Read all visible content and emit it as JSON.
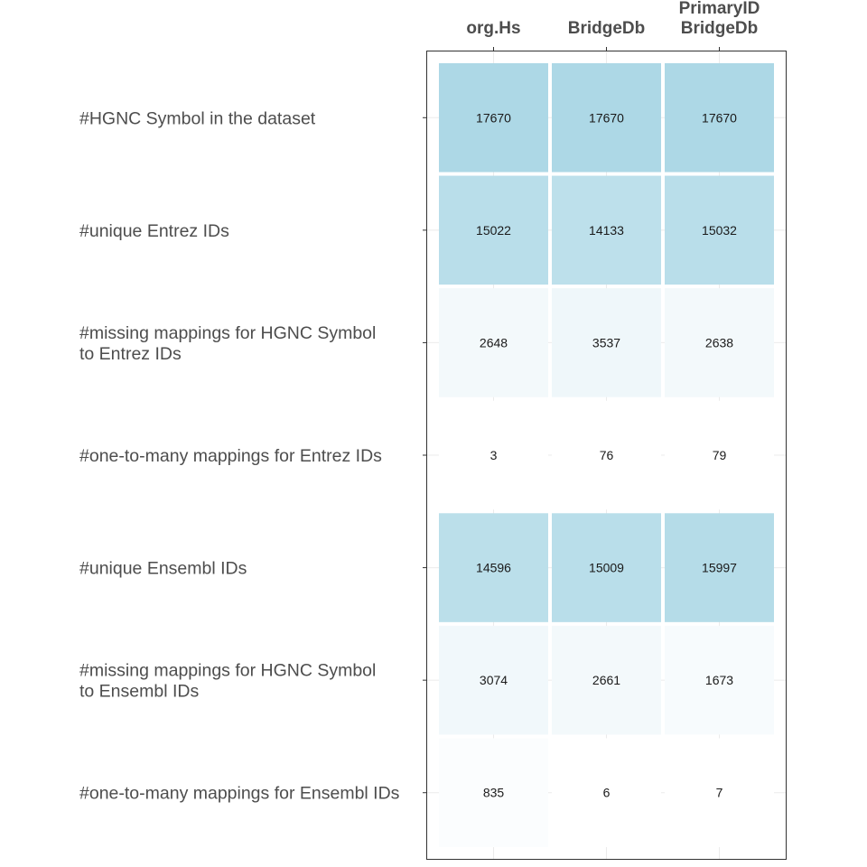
{
  "chart_data": {
    "type": "heatmap",
    "columns": [
      [
        "org.Hs"
      ],
      [
        "BridgeDb"
      ],
      [
        "PrimaryID",
        "BridgeDb"
      ]
    ],
    "rows": [
      [
        "#HGNC Symbol in the dataset"
      ],
      [
        "#unique Entrez IDs"
      ],
      [
        "#missing mappings for HGNC Symbol",
        "to Entrez IDs"
      ],
      [
        "#one-to-many mappings for Entrez IDs"
      ],
      [
        "#unique Ensembl IDs"
      ],
      [
        "#missing mappings for HGNC Symbol",
        "to Ensembl IDs"
      ],
      [
        "#one-to-many mappings for Ensembl IDs"
      ]
    ],
    "values": [
      [
        17670,
        17670,
        17670
      ],
      [
        15022,
        14133,
        15032
      ],
      [
        2648,
        3537,
        2638
      ],
      [
        3,
        76,
        79
      ],
      [
        14596,
        15009,
        15997
      ],
      [
        3074,
        2661,
        1673
      ],
      [
        835,
        6,
        7
      ]
    ],
    "color_scale": {
      "low": "#ffffff",
      "high": "#add8e6"
    },
    "grid": true,
    "legend": "none"
  }
}
